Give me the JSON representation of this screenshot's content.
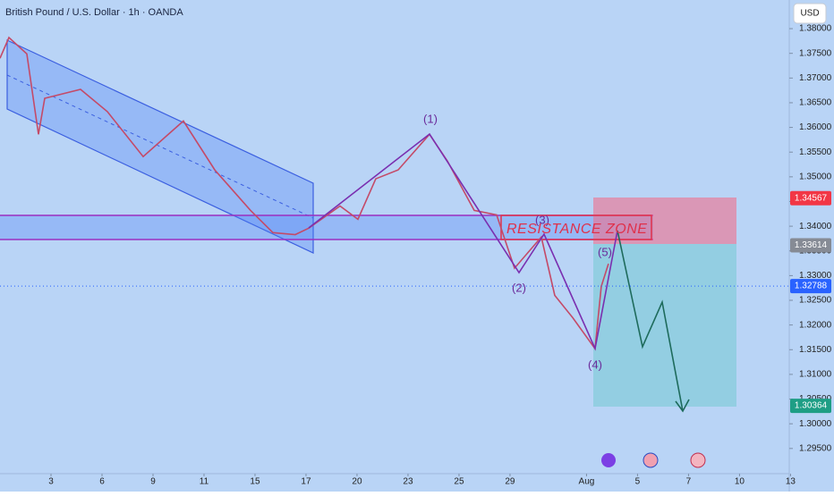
{
  "chart_data": {
    "type": "line",
    "title": "British Pound / U.S. Dollar · 1h · OANDA",
    "currency": "USD",
    "color": "#c44a68",
    "x": [
      -1,
      -0.825,
      -0.474,
      -0.246,
      -0.123,
      0.579,
      1.105,
      1.807,
      2.596,
      3.211,
      3.912,
      4.351,
      4.789,
      5.053,
      5.667,
      6.018,
      6.368,
      6.807,
      7.421,
      7.772,
      8.298,
      8.737,
      9.088,
      9.614,
      9.877,
      10.228,
      10.667,
      10.789,
      10.93
    ],
    "values": [
      1.374,
      1.3782,
      1.3749,
      1.3586,
      1.3659,
      1.3677,
      1.3632,
      1.3541,
      1.3613,
      1.3514,
      1.3432,
      1.3387,
      1.3383,
      1.3396,
      1.3441,
      1.3414,
      1.3496,
      1.3514,
      1.3586,
      1.3532,
      1.3432,
      1.3423,
      1.3315,
      1.3378,
      1.326,
      1.3215,
      1.3152,
      1.3278,
      1.3324
    ],
    "xlim": [
      -1,
      14.44
    ],
    "xticks": [
      {
        "value": 0,
        "label": "3"
      },
      {
        "value": 1,
        "label": "6"
      },
      {
        "value": 2,
        "label": "9"
      },
      {
        "value": 3,
        "label": "11"
      },
      {
        "value": 4,
        "label": "15"
      },
      {
        "value": 5,
        "label": "17"
      },
      {
        "value": 6,
        "label": "20"
      },
      {
        "value": 7,
        "label": "23"
      },
      {
        "value": 8,
        "label": "25"
      },
      {
        "value": 9,
        "label": "29"
      },
      {
        "value": 10.5,
        "label": "Aug"
      },
      {
        "value": 11.5,
        "label": "5"
      },
      {
        "value": 12.5,
        "label": "7"
      },
      {
        "value": 13.5,
        "label": "10"
      },
      {
        "value": 14.5,
        "label": "13"
      }
    ],
    "ylim": [
      1.2899,
      1.3858
    ],
    "yticks": [
      {
        "value": 1.295,
        "label": "1.29500"
      },
      {
        "value": 1.3,
        "label": "1.30000"
      },
      {
        "value": 1.305,
        "label": "1.30500"
      },
      {
        "value": 1.31,
        "label": "1.31000"
      },
      {
        "value": 1.315,
        "label": "1.31500"
      },
      {
        "value": 1.32,
        "label": "1.32000"
      },
      {
        "value": 1.325,
        "label": "1.32500"
      },
      {
        "value": 1.33,
        "label": "1.33000"
      },
      {
        "value": 1.335,
        "label": "1.33500"
      },
      {
        "value": 1.34,
        "label": "1.34000"
      },
      {
        "value": 1.345,
        "label": "1.34500"
      },
      {
        "value": 1.35,
        "label": "1.35000"
      },
      {
        "value": 1.355,
        "label": "1.35500"
      },
      {
        "value": 1.36,
        "label": "1.36000"
      },
      {
        "value": 1.365,
        "label": "1.36500"
      },
      {
        "value": 1.37,
        "label": "1.37000"
      },
      {
        "value": 1.375,
        "label": "1.37500"
      },
      {
        "value": 1.38,
        "label": "1.38000"
      }
    ],
    "price_labels": [
      1.34567,
      1.33614,
      1.32788,
      1.30364
    ],
    "price_label_colors": [
      "#f23645",
      "#868b95",
      "#2962ff",
      "#1e9e85"
    ],
    "annotations": [
      "(1)",
      "(2)",
      "(3)",
      "(4)",
      "(5)"
    ],
    "zone_label": "RESISTANCE ZONE"
  }
}
